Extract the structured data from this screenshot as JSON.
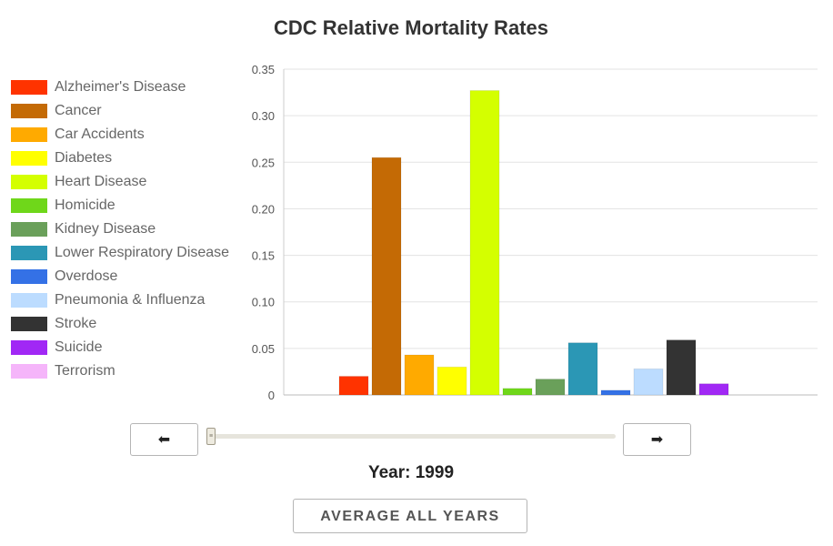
{
  "chart_data": {
    "type": "bar",
    "title": "CDC Relative Mortality Rates",
    "xlabel": "",
    "ylabel": "",
    "ylim": [
      0,
      0.35
    ],
    "yticks": [
      "0",
      "0.05",
      "0.10",
      "0.15",
      "0.20",
      "0.25",
      "0.30",
      "0.35"
    ],
    "grid": true,
    "legend_position": "left",
    "series": [
      {
        "name": "Alzheimer's Disease",
        "color": "#ff3300",
        "value": 0.02
      },
      {
        "name": "Cancer",
        "color": "#c46a05",
        "value": 0.255
      },
      {
        "name": "Car Accidents",
        "color": "#ffaa00",
        "value": 0.043
      },
      {
        "name": "Diabetes",
        "color": "#ffff00",
        "value": 0.03
      },
      {
        "name": "Heart Disease",
        "color": "#d4ff00",
        "value": 0.327
      },
      {
        "name": "Homicide",
        "color": "#6fd71a",
        "value": 0.007
      },
      {
        "name": "Kidney Disease",
        "color": "#6aa05a",
        "value": 0.017
      },
      {
        "name": "Lower Respiratory Disease",
        "color": "#2b97b5",
        "value": 0.056
      },
      {
        "name": "Overdose",
        "color": "#3471e6",
        "value": 0.005
      },
      {
        "name": "Pneumonia & Influenza",
        "color": "#bcdcff",
        "value": 0.028
      },
      {
        "name": "Stroke",
        "color": "#333333",
        "value": 0.059
      },
      {
        "name": "Suicide",
        "color": "#a128f5",
        "value": 0.012
      },
      {
        "name": "Terrorism",
        "color": "#f5b5fa",
        "value": 0.0
      }
    ]
  },
  "controls": {
    "prev_icon": "⬅",
    "next_icon": "➡",
    "year_label": "Year: 1999",
    "slider_value": 0,
    "average_button": "AVERAGE ALL YEARS"
  }
}
